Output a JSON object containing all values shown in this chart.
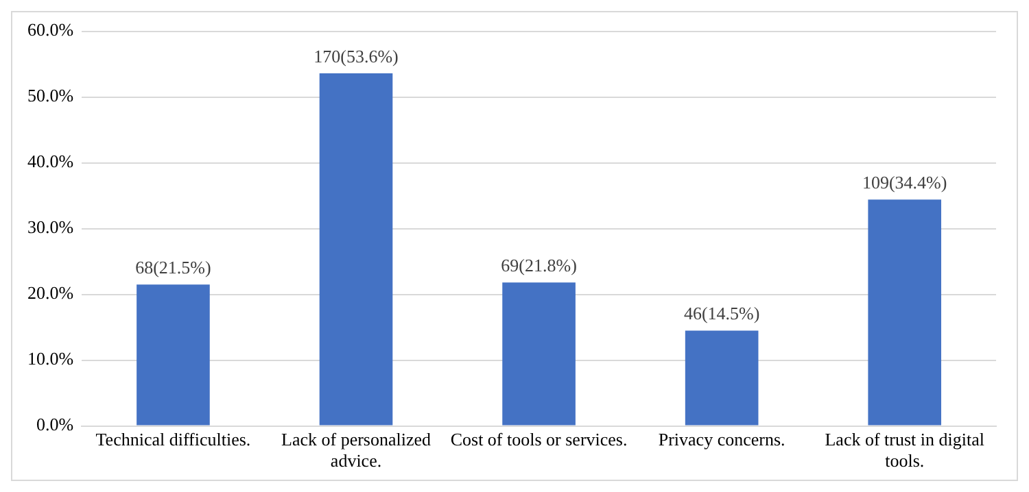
{
  "chart_data": {
    "type": "bar",
    "categories": [
      "Technical difficulties.",
      "Lack of personalized advice.",
      "Cost of tools or services.",
      "Privacy concerns.",
      "Lack of trust in digital tools."
    ],
    "values": [
      21.5,
      53.6,
      21.8,
      14.5,
      34.4
    ],
    "value_labels": [
      "68(21.5%)",
      "170(53.6%)",
      "69(21.8%)",
      "46(14.5%)",
      "109(34.4%)"
    ],
    "color": "#4472c4",
    "ylim": [
      0,
      60
    ],
    "yticks": [
      {
        "value": 0,
        "label": "0.0%"
      },
      {
        "value": 10,
        "label": "10.0%"
      },
      {
        "value": 20,
        "label": "20.0%"
      },
      {
        "value": 30,
        "label": "30.0%"
      },
      {
        "value": 40,
        "label": "40.0%"
      },
      {
        "value": 50,
        "label": "50.0%"
      },
      {
        "value": 60,
        "label": "60.0%"
      }
    ],
    "grid": "y",
    "legend": false
  }
}
